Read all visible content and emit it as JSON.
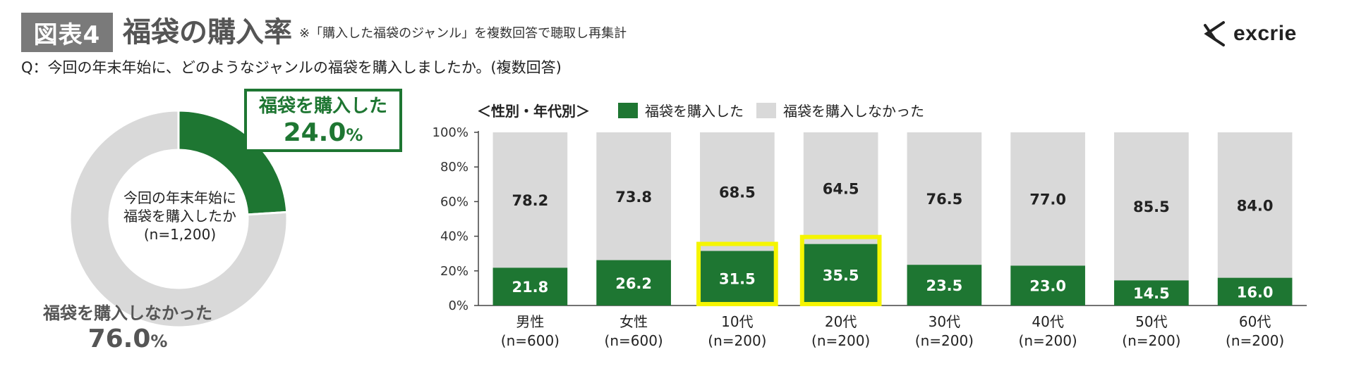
{
  "header": {
    "fig_tag": "図表4",
    "title": "福袋の購入率",
    "note": "※「購入した福袋のジャンル」を複数回答で聴取し再集計"
  },
  "question": "Q：今回の年末年始に、どのようなジャンルの福袋を購入しましたか。(複数回答)",
  "logo": {
    "text": "excrie"
  },
  "colors": {
    "bought": "#1e7632",
    "not_bought": "#d9d9d9",
    "highlight": "#f5f500"
  },
  "donut": {
    "center_lines": [
      "今回の年末年始に",
      "福袋を購入したか",
      "(n=1,200)"
    ],
    "bought_label": "福袋を購入した",
    "bought_value": "24.0",
    "not_bought_label": "福袋を購入しなかった",
    "not_bought_value": "76.0",
    "pct_unit": "%"
  },
  "legend": {
    "heading": "＜性別・年代別＞",
    "bought": "福袋を購入した",
    "not_bought": "福袋を購入しなかった"
  },
  "chart_data": [
    {
      "type": "pie",
      "labels": [
        "福袋を購入した",
        "福袋を購入しなかった"
      ],
      "values": [
        24.0,
        76.0
      ]
    },
    {
      "type": "bar",
      "stacked": true,
      "categories": [
        "男性\n(n=600)",
        "女性\n(n=600)",
        "10代\n(n=200)",
        "20代\n(n=200)",
        "30代\n(n=200)",
        "40代\n(n=200)",
        "50代\n(n=200)",
        "60代\n(n=200)"
      ],
      "category_lines": [
        [
          "男性",
          "(n=600)"
        ],
        [
          "女性",
          "(n=600)"
        ],
        [
          "10代",
          "(n=200)"
        ],
        [
          "20代",
          "(n=200)"
        ],
        [
          "30代",
          "(n=200)"
        ],
        [
          "40代",
          "(n=200)"
        ],
        [
          "50代",
          "(n=200)"
        ],
        [
          "60代",
          "(n=200)"
        ]
      ],
      "series": [
        {
          "name": "福袋を購入した",
          "values": [
            21.8,
            26.2,
            31.5,
            35.5,
            23.5,
            23.0,
            14.5,
            16.0
          ]
        },
        {
          "name": "福袋を購入しなかった",
          "values": [
            78.2,
            73.8,
            68.5,
            64.5,
            76.5,
            77.0,
            85.5,
            84.0
          ]
        }
      ],
      "value_labels": {
        "bought": [
          "21.8",
          "26.2",
          "31.5",
          "35.5",
          "23.5",
          "23.0",
          "14.5",
          "16.0"
        ],
        "not_bought": [
          "78.2",
          "73.8",
          "68.5",
          "64.5",
          "76.5",
          "77.0",
          "85.5",
          "84.0"
        ]
      },
      "highlighted": [
        "10代\n(n=200)",
        "20代\n(n=200)"
      ],
      "yticks": [
        "0%",
        "20%",
        "40%",
        "60%",
        "80%",
        "100%"
      ],
      "ylim": [
        0,
        100
      ],
      "legend_position": "top",
      "grid": false
    }
  ]
}
